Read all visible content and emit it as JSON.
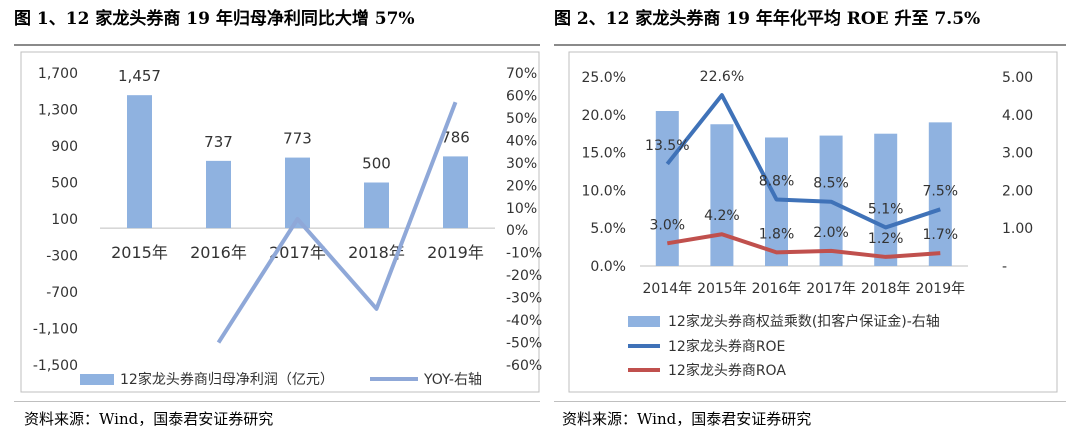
{
  "chart1": {
    "title": "图 1、12 家龙头券商 19 年归母净利同比大增 57%",
    "source": "资料来源：Wind，国泰君安证券研究",
    "legend": [
      "12家龙头券商归母净利润（亿元）",
      "YOY-右轴"
    ]
  },
  "chart2": {
    "title": "图 2、12 家龙头券商 19 年年化平均 ROE 升至 7.5%",
    "source": "资料来源：Wind，国泰君安证券研究",
    "legend": [
      "12家龙头券商权益乘数(扣客户保证金)-右轴",
      "12家龙头券商ROE",
      "12家龙头券商ROA"
    ]
  },
  "colors": {
    "bar": "#8fb2e0",
    "line_light": "#8fa8d8",
    "roe": "#3f72b8",
    "roa": "#c0504d",
    "grid": "#d9d9d9",
    "text": "#333333"
  },
  "chart_data": [
    {
      "type": "bar",
      "categories": [
        "2015年",
        "2016年",
        "2017年",
        "2018年",
        "2019年"
      ],
      "series": [
        {
          "name": "12家龙头券商归母净利润（亿元）",
          "values": [
            1457,
            737,
            773,
            500,
            786
          ],
          "labels": [
            "1,457",
            "737",
            "773",
            "500",
            "786"
          ]
        },
        {
          "name": "YOY-右轴",
          "type": "line",
          "axis": "right",
          "values": [
            null,
            -50,
            5,
            -35,
            57
          ]
        }
      ],
      "yticks_left": [
        "1,700",
        "1,300",
        "900",
        "500",
        "100",
        "-300",
        "-700",
        "-1,100",
        "-1,500"
      ],
      "yticks_right": [
        "70%",
        "60%",
        "50%",
        "40%",
        "30%",
        "20%",
        "10%",
        "0%",
        "-10%",
        "-20%",
        "-30%",
        "-40%",
        "-50%",
        "-60%"
      ],
      "ylim": [
        -1500,
        1700
      ],
      "ylim_right": [
        -60,
        70
      ]
    },
    {
      "type": "bar",
      "categories": [
        "2014年",
        "2015年",
        "2016年",
        "2017年",
        "2018年",
        "2019年"
      ],
      "series": [
        {
          "name": "12家龙头券商权益乘数(扣客户保证金)-右轴",
          "axis": "right",
          "values": [
            4.1,
            3.75,
            3.4,
            3.45,
            3.5,
            3.8
          ]
        },
        {
          "name": "12家龙头券商ROE",
          "type": "line",
          "values": [
            13.5,
            22.6,
            8.8,
            8.5,
            5.1,
            7.5
          ],
          "labels": [
            "13.5%",
            "22.6%",
            "8.8%",
            "8.5%",
            "5.1%",
            "7.5%"
          ]
        },
        {
          "name": "12家龙头券商ROA",
          "type": "line",
          "values": [
            3.0,
            4.2,
            1.8,
            2.0,
            1.2,
            1.7
          ],
          "labels": [
            "3.0%",
            "4.2%",
            "1.8%",
            "2.0%",
            "1.2%",
            "1.7%"
          ]
        }
      ],
      "yticks_left": [
        "25.0%",
        "20.0%",
        "15.0%",
        "10.0%",
        "5.0%",
        "0.0%"
      ],
      "yticks_right": [
        "5.00",
        "4.00",
        "3.00",
        "2.00",
        "1.00",
        "-"
      ],
      "ylim": [
        0,
        25
      ],
      "ylim_right": [
        0,
        5
      ]
    }
  ]
}
